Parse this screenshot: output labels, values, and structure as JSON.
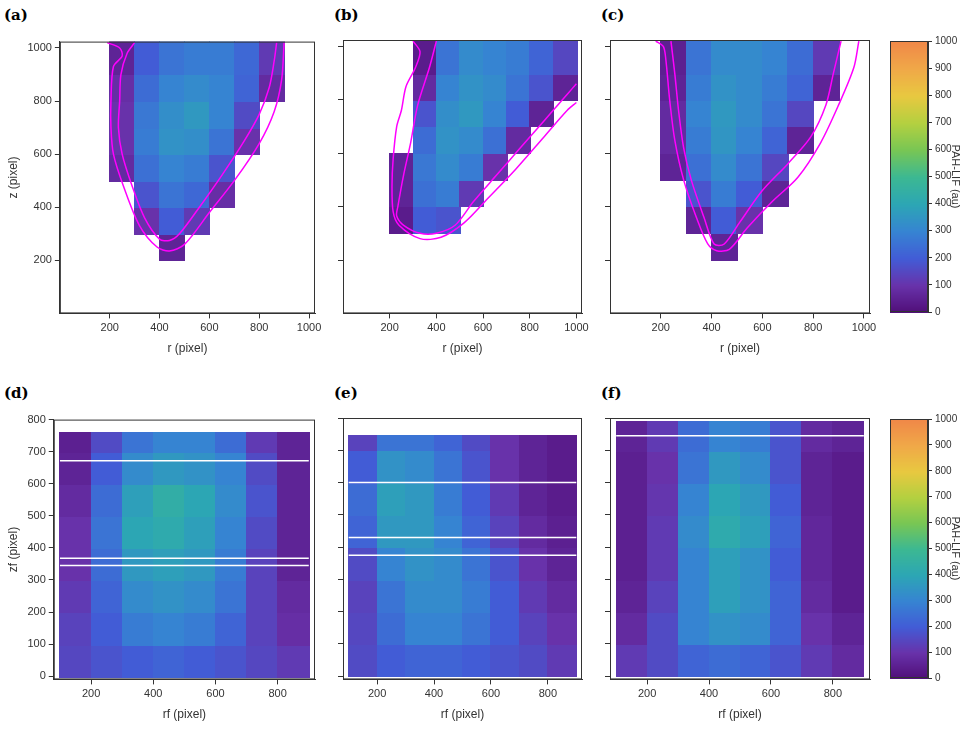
{
  "chart_data": [
    {
      "type": "heatmap",
      "title": "(a)",
      "x_label": "r (pixel)",
      "y_label": "z (pixel)",
      "xlim": [
        0,
        1024
      ],
      "ylim": [
        0,
        1024
      ],
      "xticks": [
        200,
        400,
        600,
        800,
        1000
      ],
      "yticks": [
        200,
        400,
        600,
        800,
        1000
      ],
      "x_edges": [
        100,
        200,
        300,
        400,
        500,
        600,
        700,
        800,
        900,
        1000
      ],
      "y_edges": [
        200,
        300,
        400,
        500,
        600,
        700,
        800,
        900,
        1024
      ],
      "cells": [
        [
          null,
          null,
          null,
          60,
          null,
          null,
          null,
          null,
          null
        ],
        [
          null,
          null,
          100,
          200,
          120,
          null,
          null,
          null,
          null
        ],
        [
          null,
          null,
          180,
          260,
          230,
          90,
          null,
          null,
          null
        ],
        [
          null,
          80,
          250,
          300,
          280,
          180,
          null,
          null,
          null
        ],
        [
          null,
          100,
          280,
          340,
          330,
          260,
          100,
          null,
          null
        ],
        [
          null,
          100,
          270,
          330,
          360,
          300,
          160,
          null,
          null
        ],
        [
          null,
          90,
          240,
          300,
          320,
          300,
          220,
          80,
          null
        ],
        [
          null,
          60,
          200,
          260,
          280,
          280,
          230,
          120,
          null
        ]
      ],
      "color": "#ff00ff",
      "contours": [
        {
          "x": [
            300,
            270,
            245,
            240,
            235,
            250,
            290,
            340,
            400,
            440,
            480,
            560,
            650,
            740,
            800,
            840,
            860,
            870
          ],
          "y": [
            1020,
            980,
            900,
            800,
            700,
            600,
            480,
            360,
            280,
            275,
            300,
            400,
            520,
            650,
            750,
            850,
            950,
            1020
          ]
        },
        {
          "x": [
            190,
            240,
            250,
            215,
            205,
            205,
            215,
            255,
            320,
            390,
            440,
            500,
            600,
            700,
            800,
            860,
            890,
            900
          ],
          "y": [
            1020,
            1000,
            970,
            930,
            800,
            700,
            600,
            480,
            330,
            250,
            235,
            260,
            380,
            500,
            640,
            760,
            880,
            1020
          ]
        }
      ]
    },
    {
      "type": "heatmap",
      "title": "(b)",
      "x_label": "r (pixel)",
      "tick_labels": "x",
      "xlim": [
        0,
        1024
      ],
      "ylim": [
        0,
        1024
      ],
      "xticks": [
        200,
        400,
        600,
        800,
        1000
      ],
      "yticks": [
        200,
        400,
        600,
        800,
        1000
      ],
      "x_edges": [
        100,
        200,
        300,
        400,
        500,
        600,
        700,
        800,
        900,
        1000
      ],
      "y_edges": [
        200,
        300,
        400,
        500,
        600,
        700,
        800,
        900,
        1024
      ],
      "cells": [
        [
          null,
          null,
          null,
          null,
          null,
          null,
          null,
          null,
          null
        ],
        [
          null,
          40,
          200,
          180,
          null,
          null,
          null,
          null,
          null
        ],
        [
          null,
          60,
          250,
          280,
          120,
          null,
          null,
          null,
          null
        ],
        [
          null,
          60,
          270,
          320,
          280,
          100,
          null,
          null,
          null
        ],
        [
          null,
          null,
          240,
          340,
          320,
          250,
          80,
          null,
          null
        ],
        [
          null,
          null,
          180,
          330,
          360,
          300,
          200,
          60,
          null
        ],
        [
          null,
          null,
          80,
          300,
          340,
          320,
          260,
          180,
          60
        ],
        [
          null,
          null,
          40,
          260,
          320,
          300,
          280,
          220,
          150
        ]
      ],
      "color": "#ff00ff",
      "contours": [
        {
          "x": [
            400,
            370,
            320,
            290,
            260,
            235,
            230,
            260,
            330,
            400,
            480,
            560,
            660,
            760,
            860,
            960,
            1000
          ],
          "y": [
            1020,
            920,
            780,
            640,
            520,
            400,
            365,
            330,
            300,
            300,
            330,
            420,
            520,
            620,
            720,
            820,
            860
          ]
        },
        {
          "x": [
            300,
            330,
            310,
            270,
            250,
            230,
            215,
            210,
            215,
            240,
            330,
            420,
            520,
            620,
            740,
            860,
            960,
            1000
          ],
          "y": [
            1020,
            980,
            920,
            850,
            760,
            700,
            580,
            480,
            380,
            330,
            280,
            285,
            340,
            430,
            540,
            660,
            760,
            790
          ]
        }
      ]
    },
    {
      "type": "heatmap",
      "title": "(c)",
      "x_label": "r (pixel)",
      "tick_labels": "x",
      "xlim": [
        0,
        1024
      ],
      "ylim": [
        0,
        1024
      ],
      "xticks": [
        200,
        400,
        600,
        800,
        1000
      ],
      "yticks": [
        200,
        400,
        600,
        800,
        1000
      ],
      "x_edges": [
        100,
        200,
        300,
        400,
        500,
        600,
        700,
        800,
        900,
        1000
      ],
      "y_edges": [
        200,
        300,
        400,
        500,
        600,
        700,
        800,
        900,
        1024
      ],
      "cells": [
        [
          null,
          null,
          null,
          60,
          null,
          null,
          null,
          null,
          null
        ],
        [
          null,
          null,
          60,
          200,
          100,
          null,
          null,
          null,
          null
        ],
        [
          null,
          null,
          180,
          280,
          200,
          60,
          null,
          null,
          null
        ],
        [
          null,
          60,
          250,
          320,
          260,
          150,
          null,
          null,
          null
        ],
        [
          null,
          80,
          280,
          350,
          300,
          220,
          60,
          null,
          null
        ],
        [
          null,
          80,
          300,
          360,
          320,
          260,
          150,
          null,
          null
        ],
        [
          null,
          60,
          280,
          340,
          320,
          280,
          220,
          60,
          null
        ],
        [
          null,
          50,
          260,
          320,
          320,
          300,
          240,
          120,
          null
        ]
      ],
      "color": "#ff00ff",
      "contours": [
        {
          "x": [
            240,
            255,
            270,
            290,
            320,
            370,
            410,
            450,
            510,
            600,
            700,
            790,
            850,
            880,
            910
          ],
          "y": [
            1020,
            900,
            760,
            620,
            500,
            360,
            260,
            260,
            340,
            460,
            560,
            660,
            780,
            900,
            1020
          ]
        },
        {
          "x": [
            180,
            210,
            220,
            235,
            255,
            290,
            340,
            385,
            420,
            470,
            540,
            640,
            740,
            830,
            900,
            960,
            980
          ],
          "y": [
            1020,
            1000,
            950,
            800,
            650,
            500,
            360,
            260,
            235,
            240,
            320,
            420,
            510,
            640,
            780,
            920,
            1020
          ]
        }
      ],
      "colorbar": {
        "label": "PAH-LIF (au)",
        "range": [
          0,
          1000
        ],
        "ticks": [
          0,
          100,
          200,
          300,
          400,
          500,
          600,
          700,
          800,
          900,
          1000
        ]
      }
    },
    {
      "type": "heatmap",
      "title": "(d)",
      "x_label": "rf (pixel)",
      "y_label": "zf (pixel)",
      "xlim": [
        80,
        920
      ],
      "ylim": [
        -10,
        800
      ],
      "xticks": [
        200,
        400,
        600,
        800
      ],
      "yticks": [
        0,
        100,
        200,
        300,
        400,
        500,
        600,
        700,
        800
      ],
      "x_edges": [
        100,
        200,
        300,
        400,
        500,
        600,
        700,
        800,
        900
      ],
      "y_edges": [
        0,
        100,
        200,
        300,
        400,
        500,
        600,
        700,
        760
      ],
      "cells": [
        [
          150,
          180,
          200,
          220,
          200,
          180,
          150,
          120
        ],
        [
          140,
          200,
          280,
          300,
          280,
          220,
          140,
          90
        ],
        [
          120,
          220,
          320,
          340,
          320,
          260,
          140,
          80
        ],
        [
          100,
          240,
          360,
          380,
          360,
          280,
          140,
          60
        ],
        [
          100,
          260,
          400,
          420,
          380,
          300,
          160,
          60
        ],
        [
          80,
          240,
          380,
          440,
          400,
          320,
          180,
          60
        ],
        [
          60,
          200,
          320,
          360,
          340,
          300,
          160,
          60
        ],
        [
          50,
          160,
          260,
          300,
          300,
          240,
          120,
          60
        ]
      ],
      "white_lines": [
        672,
        368,
        345
      ]
    },
    {
      "type": "heatmap",
      "title": "(e)",
      "x_label": "rf (pixel)",
      "tick_labels": "x",
      "xlim": [
        80,
        920
      ],
      "ylim": [
        -10,
        800
      ],
      "xticks": [
        200,
        400,
        600,
        800
      ],
      "yticks": [
        0,
        100,
        200,
        300,
        400,
        500,
        600,
        700,
        800
      ],
      "x_edges": [
        100,
        200,
        300,
        400,
        500,
        600,
        700,
        800,
        900
      ],
      "y_edges": [
        0,
        100,
        200,
        300,
        400,
        500,
        600,
        700,
        745
      ],
      "cells": [
        [
          160,
          200,
          220,
          220,
          200,
          180,
          160,
          120
        ],
        [
          150,
          240,
          300,
          300,
          260,
          200,
          140,
          100
        ],
        [
          140,
          260,
          320,
          320,
          280,
          200,
          120,
          80
        ],
        [
          160,
          300,
          340,
          320,
          260,
          180,
          100,
          60
        ],
        [
          220,
          360,
          360,
          300,
          220,
          140,
          80,
          50
        ],
        [
          240,
          380,
          360,
          280,
          200,
          120,
          60,
          40
        ],
        [
          200,
          340,
          320,
          260,
          180,
          100,
          60,
          40
        ],
        [
          140,
          260,
          260,
          220,
          160,
          100,
          60,
          40
        ]
      ],
      "white_lines": [
        600,
        430,
        375
      ]
    },
    {
      "type": "heatmap",
      "title": "(f)",
      "x_label": "rf (pixel)",
      "tick_labels": "x",
      "xlim": [
        80,
        920
      ],
      "ylim": [
        -10,
        800
      ],
      "xticks": [
        200,
        400,
        600,
        800
      ],
      "yticks": [
        0,
        100,
        200,
        300,
        400,
        500,
        600,
        700,
        800
      ],
      "x_edges": [
        100,
        200,
        300,
        400,
        500,
        600,
        700,
        800,
        900
      ],
      "y_edges": [
        0,
        100,
        200,
        300,
        400,
        500,
        600,
        700,
        790
      ],
      "cells": [
        [
          120,
          160,
          220,
          240,
          220,
          180,
          120,
          80
        ],
        [
          80,
          160,
          300,
          340,
          320,
          220,
          100,
          60
        ],
        [
          60,
          140,
          300,
          380,
          340,
          220,
          80,
          40
        ],
        [
          50,
          120,
          300,
          380,
          340,
          200,
          70,
          40
        ],
        [
          50,
          120,
          320,
          420,
          380,
          220,
          70,
          40
        ],
        [
          50,
          110,
          300,
          400,
          360,
          200,
          60,
          40
        ],
        [
          50,
          100,
          260,
          360,
          320,
          180,
          60,
          40
        ],
        [
          60,
          120,
          240,
          300,
          280,
          180,
          80,
          60
        ]
      ],
      "white_lines": [
        745
      ],
      "colorbar": {
        "label": "PAH-LIF (au)",
        "range": [
          0,
          1000
        ],
        "ticks": [
          0,
          100,
          200,
          300,
          400,
          500,
          600,
          700,
          800,
          900,
          1000
        ]
      }
    }
  ]
}
